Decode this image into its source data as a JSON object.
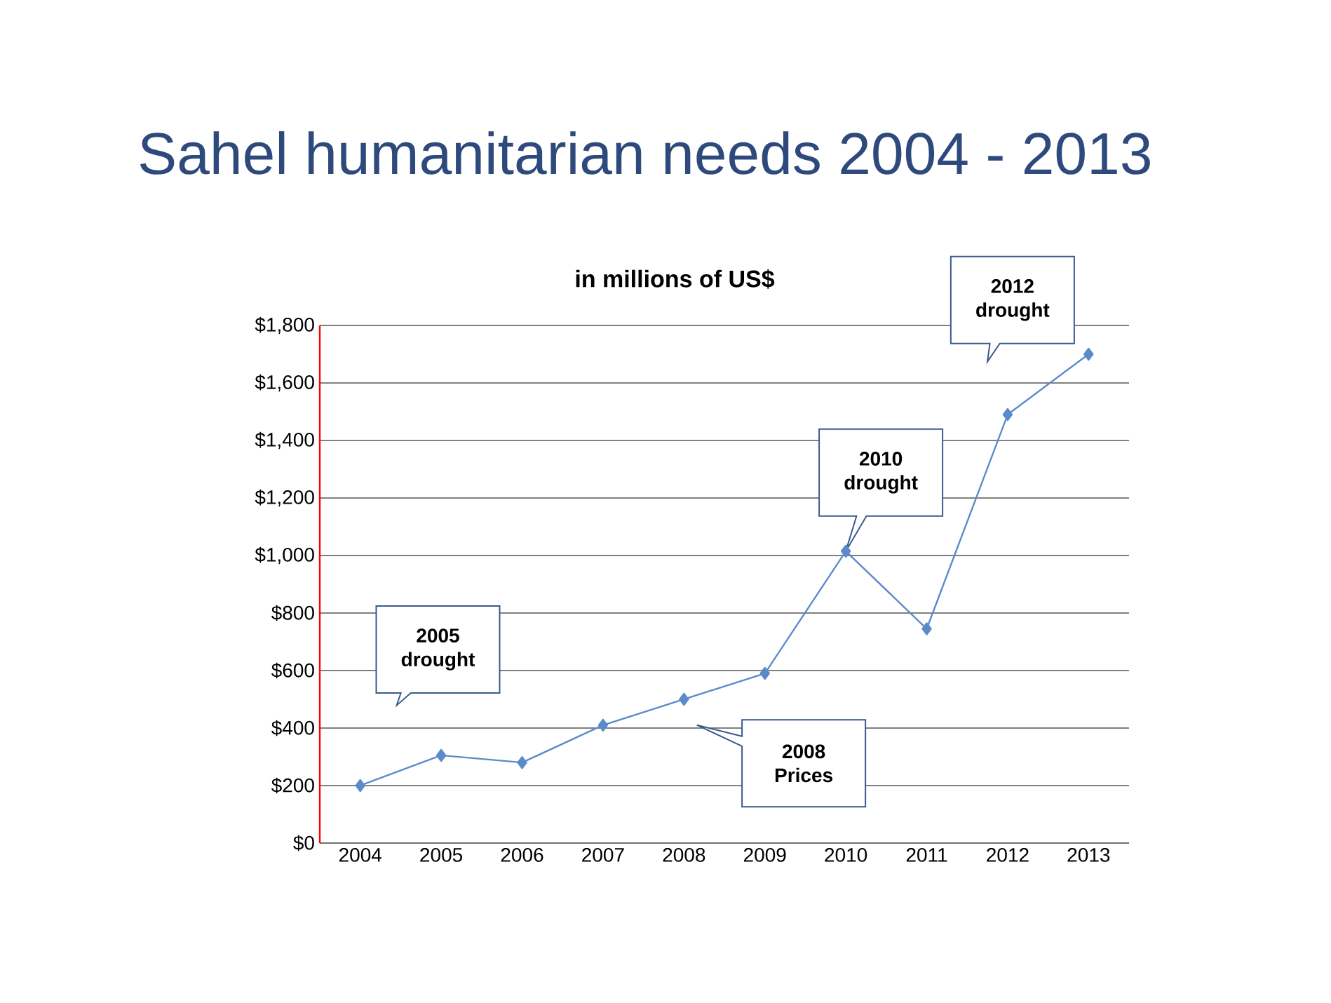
{
  "chart_data": {
    "type": "line",
    "title": "Sahel humanitarian needs 2004 - 2013",
    "subtitle": "in millions of US$",
    "categories": [
      "2004",
      "2005",
      "2006",
      "2007",
      "2008",
      "2009",
      "2010",
      "2011",
      "2012",
      "2013"
    ],
    "values": [
      200,
      305,
      280,
      410,
      500,
      590,
      1015,
      745,
      1490,
      1700
    ],
    "color": "#5b8bc9",
    "marker": "diamond",
    "line_style": "solid",
    "grid": "y",
    "ylim": [
      0,
      1800
    ],
    "yticks": [
      {
        "value": 0,
        "label": "$0"
      },
      {
        "value": 200,
        "label": "$200"
      },
      {
        "value": 400,
        "label": "$400"
      },
      {
        "value": 600,
        "label": "$600"
      },
      {
        "value": 800,
        "label": "$800"
      },
      {
        "value": 1000,
        "label": "$1,000"
      },
      {
        "value": 1200,
        "label": "$1,200"
      },
      {
        "value": 1400,
        "label": "$1,400"
      },
      {
        "value": 1600,
        "label": "$1,600"
      },
      {
        "value": 1800,
        "label": "$1,800"
      }
    ],
    "annotations": [
      "2005 drought",
      "2008 Prices",
      {
        "text": "2010 drought",
        "x": "2010",
        "y": 1015
      },
      "2012 drought"
    ]
  }
}
